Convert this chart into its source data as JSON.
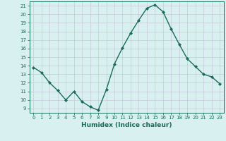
{
  "x": [
    0,
    1,
    2,
    3,
    4,
    5,
    6,
    7,
    8,
    9,
    10,
    11,
    12,
    13,
    14,
    15,
    16,
    17,
    18,
    19,
    20,
    21,
    22,
    23
  ],
  "y": [
    13.8,
    13.2,
    12.0,
    11.1,
    10.0,
    11.0,
    9.8,
    9.2,
    8.8,
    11.2,
    14.2,
    16.1,
    17.8,
    19.3,
    20.7,
    21.1,
    20.3,
    18.3,
    16.5,
    14.8,
    13.9,
    13.0,
    12.7,
    11.9
  ],
  "line_color": "#1a6b5a",
  "marker": "D",
  "marker_size": 2.0,
  "line_width": 1.0,
  "xlabel": "Humidex (Indice chaleur)",
  "xlim": [
    -0.5,
    23.5
  ],
  "ylim": [
    8.5,
    21.5
  ],
  "yticks": [
    9,
    10,
    11,
    12,
    13,
    14,
    15,
    16,
    17,
    18,
    19,
    20,
    21
  ],
  "xticks": [
    0,
    1,
    2,
    3,
    4,
    5,
    6,
    7,
    8,
    9,
    10,
    11,
    12,
    13,
    14,
    15,
    16,
    17,
    18,
    19,
    20,
    21,
    22,
    23
  ],
  "xtick_labels": [
    "0",
    "1",
    "2",
    "3",
    "4",
    "5",
    "6",
    "7",
    "8",
    "9",
    "10",
    "11",
    "12",
    "13",
    "14",
    "15",
    "16",
    "17",
    "18",
    "19",
    "20",
    "21",
    "22",
    "23"
  ],
  "major_grid_color": "#c8c8d8",
  "minor_grid_color": "#c8dce0",
  "bg_color": "#d8f0f0",
  "text_color": "#1a6b5a",
  "xlabel_fontsize": 6.5,
  "tick_fontsize": 5.0
}
